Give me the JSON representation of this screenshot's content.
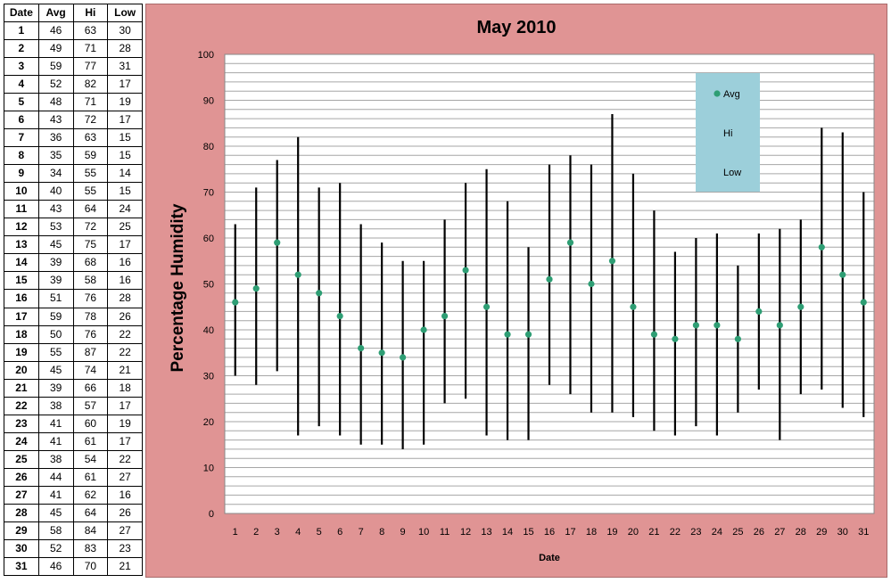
{
  "table": {
    "headers": [
      "Date",
      "Avg",
      "Hi",
      "Low"
    ]
  },
  "chart_data": {
    "type": "hi-low-avg",
    "title": "May 2010",
    "xlabel": "Date",
    "ylabel": "Percentage Humidity",
    "ylim": [
      0,
      100
    ],
    "y_major_ticks": [
      0,
      10,
      20,
      30,
      40,
      50,
      60,
      70,
      80,
      90,
      100
    ],
    "y_minor_step": 2,
    "grid": true,
    "legend_position": "top-right",
    "categories": [
      1,
      2,
      3,
      4,
      5,
      6,
      7,
      8,
      9,
      10,
      11,
      12,
      13,
      14,
      15,
      16,
      17,
      18,
      19,
      20,
      21,
      22,
      23,
      24,
      25,
      26,
      27,
      28,
      29,
      30,
      31
    ],
    "series": [
      {
        "name": "Avg",
        "values": [
          46,
          49,
          59,
          52,
          48,
          43,
          36,
          35,
          34,
          40,
          43,
          53,
          45,
          39,
          39,
          51,
          59,
          50,
          55,
          45,
          39,
          38,
          41,
          41,
          38,
          44,
          41,
          45,
          58,
          52,
          46
        ]
      },
      {
        "name": "Hi",
        "values": [
          63,
          71,
          77,
          82,
          71,
          72,
          63,
          59,
          55,
          55,
          64,
          72,
          75,
          68,
          58,
          76,
          78,
          76,
          87,
          74,
          66,
          57,
          60,
          61,
          54,
          61,
          62,
          64,
          84,
          83,
          70
        ]
      },
      {
        "name": "Low",
        "values": [
          30,
          28,
          31,
          17,
          19,
          17,
          15,
          15,
          14,
          15,
          24,
          25,
          17,
          16,
          16,
          28,
          26,
          22,
          22,
          21,
          18,
          17,
          19,
          17,
          22,
          27,
          16,
          26,
          27,
          23,
          21
        ]
      }
    ],
    "colors": {
      "avg_marker": "#2e9e74",
      "range_line": "#000000",
      "panel_bg": "#e09494",
      "plot_bg": "#ffffff",
      "legend_bg": "#9ccfda",
      "grid": "#a6a6a6"
    }
  }
}
